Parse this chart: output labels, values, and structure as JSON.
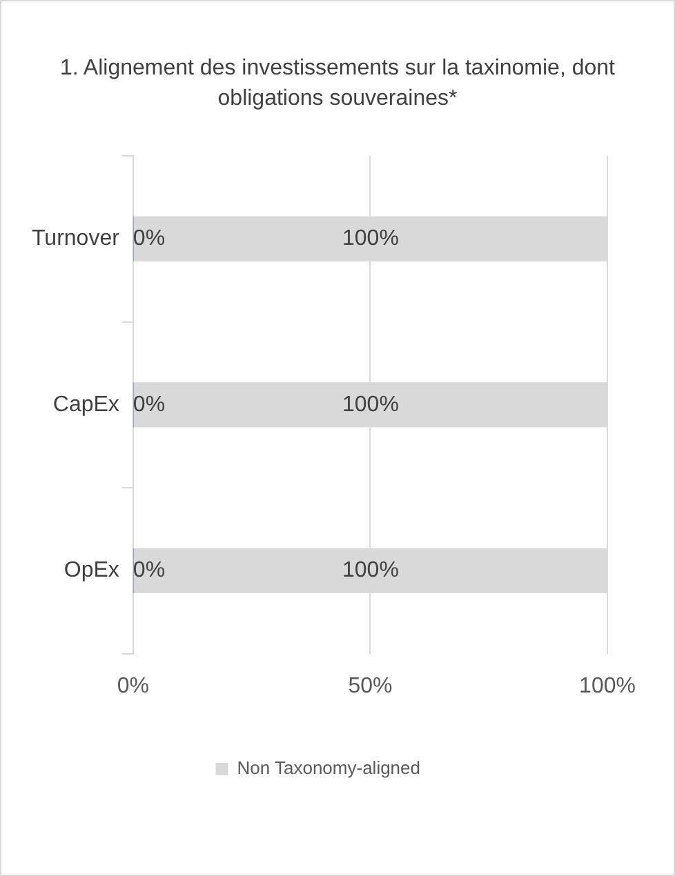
{
  "chart_data": {
    "type": "bar",
    "orientation": "horizontal",
    "stacked": true,
    "title": "1. Alignement des investissements sur la taxinomie, dont obligations souveraines*",
    "categories": [
      "Turnover",
      "CapEx",
      "OpEx"
    ],
    "series": [
      {
        "color": "#4472c4",
        "values": [
          0,
          0,
          0
        ],
        "value_labels": [
          "0%",
          "0%",
          "0%"
        ]
      },
      {
        "name": "Non Taxonomy-aligned",
        "color": "#d9d9d9",
        "values": [
          100,
          100,
          100
        ],
        "value_labels": [
          "100%",
          "100%",
          "100%"
        ]
      }
    ],
    "xlim": [
      0,
      100
    ],
    "xticks": [
      {
        "value": 0,
        "label": "0%"
      },
      {
        "value": 50,
        "label": "50%"
      },
      {
        "value": 100,
        "label": "100%"
      }
    ],
    "grid": "x",
    "legend": "bottom"
  }
}
